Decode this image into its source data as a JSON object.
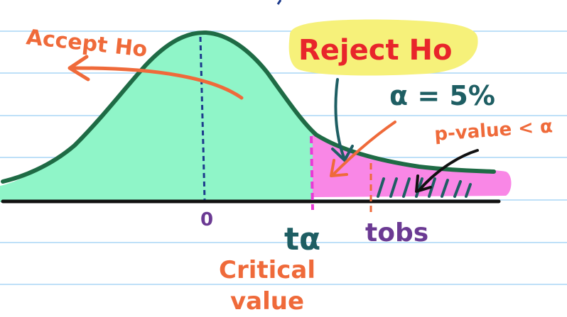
{
  "labels": {
    "accept": "Accept Ho",
    "reject": "Reject Ho",
    "alpha": "α = 5%",
    "pvalue": "p-value < α",
    "zero": "0",
    "t_alpha": "tα",
    "t_obs": "tobs",
    "critical_line1": "Critical",
    "critical_line2": "value"
  },
  "colors": {
    "ruled_line": "#a9d6f5",
    "curve": "#1f6b45",
    "accept_fill": "#8ff5c8",
    "reject_fill": "#f987e6",
    "highlight": "#f6f17a",
    "orange": "#ef6a3a",
    "red": "#e8252b",
    "teal": "#1e5e63",
    "purple": "#6b3a93",
    "magenta": "#e83ad6",
    "navy": "#1c3a8c",
    "black": "#111111"
  }
}
